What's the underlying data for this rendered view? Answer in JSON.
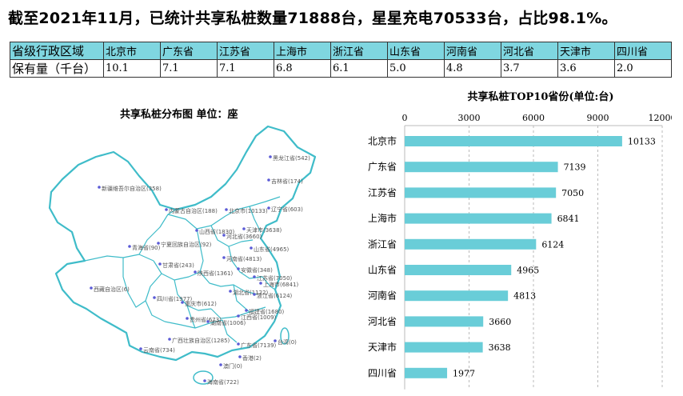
{
  "headline": "截至2021年11月，已统计共享私桩数量71888台，星星充电70533台，占比98.1%。",
  "table": {
    "header_label": "省级行政区域",
    "value_label": "保有量（千台）",
    "regions": [
      "北京市",
      "广东省",
      "江苏省",
      "上海市",
      "浙江省",
      "山东省",
      "河南省",
      "河北省",
      "天津市",
      "四川省"
    ],
    "values": [
      "10.1",
      "7.1",
      "7.1",
      "6.8",
      "6.1",
      "5.0",
      "4.8",
      "3.7",
      "3.6",
      "2.0"
    ]
  },
  "map": {
    "title": "共享私桩分布图   单位：座",
    "labels": [
      "黑龙江省(542)",
      "吉林省(174)",
      "辽宁省(603)",
      "新疆维吾尔自治区(358)",
      "内蒙古自治区(188)",
      "北京市(10133)",
      "天津市(3638)",
      "山西省(1830)",
      "河北省(3660)",
      "山东省(4965)",
      "青海省(90)",
      "宁夏回族自治区(92)",
      "甘肃省(243)",
      "河南省(4813)",
      "陕西省(1361)",
      "安徽省(348)",
      "江苏省(7050)",
      "上海市(6841)",
      "西藏自治区(6)",
      "四川省(1977)",
      "湖北省(1122)",
      "浙江省(6124)",
      "重庆市(612)",
      "福建省(1680)",
      "贵州省(673)",
      "江西省(1009)",
      "湖南省(1006)",
      "广西壮族自治区(1285)",
      "台湾(0)",
      "云南省(734)",
      "广东省(7139)",
      "香港(2)",
      "澳门(0)",
      "海南省(722)"
    ],
    "colors": {
      "outline": "#3fbcc9",
      "marker": "#5b5bd6"
    }
  },
  "chart_data": {
    "type": "bar",
    "orientation": "horizontal",
    "title": "共享私桩TOP10省份(单位:台)",
    "categories": [
      "北京市",
      "广东省",
      "江苏省",
      "上海市",
      "浙江省",
      "山东省",
      "河南省",
      "河北省",
      "天津市",
      "四川省"
    ],
    "values": [
      10133,
      7139,
      7050,
      6841,
      6124,
      4965,
      4813,
      3660,
      3638,
      1977
    ],
    "xlim": [
      0,
      12000
    ],
    "xticks": [
      0,
      3000,
      6000,
      9000,
      12000
    ],
    "grid": "vertical dashed",
    "legend": "none",
    "color": "#69cdd8"
  }
}
